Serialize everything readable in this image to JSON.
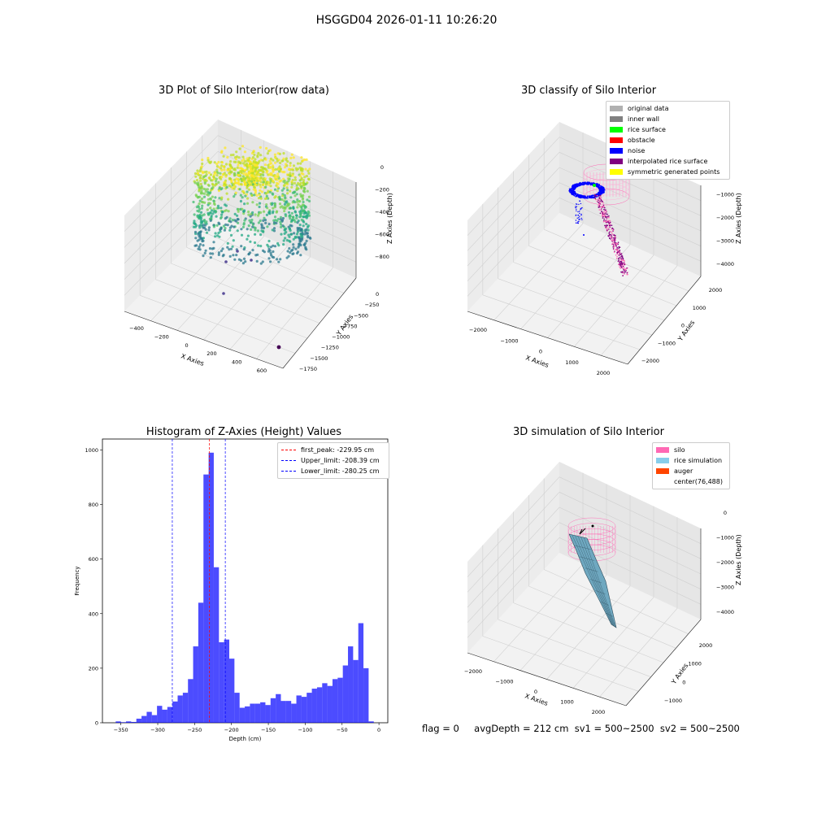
{
  "suptitle": "HSGGD04 2026-01-11 10:26:20",
  "footer": {
    "flag": "flag = 0",
    "avg": "avgDepth = 212 cm  sv1 = 500~2500  sv2 = 500~2500"
  },
  "panel1": {
    "title": "3D Plot of Silo Interior(row data)",
    "xlabel": "X Axies",
    "ylabel": "Y Axies",
    "zlabel": "Z Axies (Depth)",
    "xticks": [
      "−400",
      "−200",
      "0",
      "200",
      "400",
      "600"
    ],
    "yticks": [
      "0",
      "−250",
      "−500",
      "−750",
      "−1000",
      "−1250",
      "−1500",
      "−1750"
    ],
    "zticks": [
      "0",
      "−200",
      "−400",
      "−600",
      "−800"
    ]
  },
  "panel2": {
    "title": "3D classify of Silo Interior",
    "xlabel": "X Axies",
    "ylabel": "Y Axies",
    "zlabel": "Z Axies (Depth)",
    "xticks": [
      "−2000",
      "−1000",
      "0",
      "1000",
      "2000"
    ],
    "yticks": [
      "2000",
      "1000",
      "0",
      "−1000",
      "−2000"
    ],
    "zticks": [
      "0",
      "−1000",
      "−2000",
      "−3000",
      "−4000"
    ],
    "legend": [
      {
        "label": "original data",
        "color": "#b0b0b0"
      },
      {
        "label": "inner wall",
        "color": "#808080"
      },
      {
        "label": "rice surface",
        "color": "#00ff00"
      },
      {
        "label": "obstacle",
        "color": "#ff0000"
      },
      {
        "label": "noise",
        "color": "#0000ff"
      },
      {
        "label": "interpolated rice surface",
        "color": "#800080"
      },
      {
        "label": "symmetric generated points",
        "color": "#ffff00"
      }
    ]
  },
  "panel3": {
    "title": "Histogram of Z-Axies (Height) Values",
    "xlabel": "Depth (cm)",
    "ylabel": "Frequency",
    "legend": [
      {
        "label": "first_peak: -229.95 cm",
        "color": "#ff0000"
      },
      {
        "label": "Upper_limit: -208.39 cm",
        "color": "#0000ff"
      },
      {
        "label": "Lower_limit: -280.25 cm",
        "color": "#0000ff"
      }
    ]
  },
  "panel4": {
    "title": "3D simulation of Silo Interior",
    "xlabel": "X Axies",
    "ylabel": "Y Axies",
    "zlabel": "Z Axies (Depth)",
    "xticks": [
      "−2000",
      "−1000",
      "0",
      "1000",
      "2000"
    ],
    "yticks": [
      "2000",
      "1000",
      "0",
      "−1000"
    ],
    "zticks": [
      "0",
      "−1000",
      "−2000",
      "−3000",
      "−4000"
    ],
    "legend": [
      {
        "label": "silo",
        "color": "#ff69b4"
      },
      {
        "label": "rice simulation",
        "color": "#87ceeb"
      },
      {
        "label": "auger",
        "color": "#ff4500"
      },
      {
        "label": "center(76,488)",
        "color": "#ffffff"
      }
    ]
  },
  "chart_data": [
    {
      "type": "scatter",
      "title": "3D Plot of Silo Interior(row data)",
      "xlabel": "X Axies",
      "ylabel": "Y Axies",
      "zlabel": "Z Axies (Depth)",
      "xlim": [
        -450,
        650
      ],
      "ylim": [
        -1800,
        100
      ],
      "zlim": [
        -900,
        50
      ]
    },
    {
      "type": "scatter",
      "title": "3D classify of Silo Interior",
      "xlabel": "X Axies",
      "ylabel": "Y Axies",
      "zlabel": "Z Axies (Depth)",
      "xlim": [
        -2300,
        2300
      ],
      "ylim": [
        -2300,
        2300
      ],
      "zlim": [
        -4800,
        300
      ],
      "series": [
        {
          "name": "original data"
        },
        {
          "name": "inner wall"
        },
        {
          "name": "rice surface"
        },
        {
          "name": "obstacle"
        },
        {
          "name": "noise"
        },
        {
          "name": "interpolated rice surface"
        },
        {
          "name": "symmetric generated points"
        }
      ]
    },
    {
      "type": "bar",
      "title": "Histogram of Z-Axies (Height) Values",
      "xlabel": "Depth (cm)",
      "ylabel": "Frequency",
      "xlim": [
        -375,
        12
      ],
      "ylim": [
        0,
        1040
      ],
      "xticks": [
        -350,
        -300,
        -250,
        -200,
        -150,
        -100,
        -50,
        0
      ],
      "yticks": [
        0,
        200,
        400,
        600,
        800,
        1000
      ],
      "bin_width": 7,
      "bin_start": -357,
      "values": [
        5,
        2,
        5,
        3,
        15,
        25,
        40,
        28,
        62,
        48,
        58,
        78,
        100,
        110,
        160,
        280,
        440,
        910,
        990,
        570,
        295,
        305,
        235,
        110,
        55,
        60,
        70,
        70,
        75,
        65,
        90,
        105,
        80,
        80,
        70,
        100,
        95,
        110,
        125,
        130,
        145,
        135,
        160,
        165,
        210,
        280,
        230,
        365,
        200,
        5
      ],
      "vlines": [
        {
          "name": "first_peak: -229.95 cm",
          "x": -229.95
        },
        {
          "name": "Upper_limit: -208.39 cm",
          "x": -208.39
        },
        {
          "name": "Lower_limit: -280.25 cm",
          "x": -280.25
        }
      ]
    },
    {
      "type": "scatter",
      "title": "3D simulation of Silo Interior",
      "xlabel": "X Axies",
      "ylabel": "Y Axies",
      "zlabel": "Z Axies (Depth)",
      "xlim": [
        -2300,
        2300
      ],
      "ylim": [
        -1500,
        2300
      ],
      "zlim": [
        -4800,
        300
      ],
      "series": [
        {
          "name": "silo"
        },
        {
          "name": "rice simulation"
        },
        {
          "name": "auger"
        },
        {
          "name": "center(76,488)"
        }
      ]
    }
  ]
}
